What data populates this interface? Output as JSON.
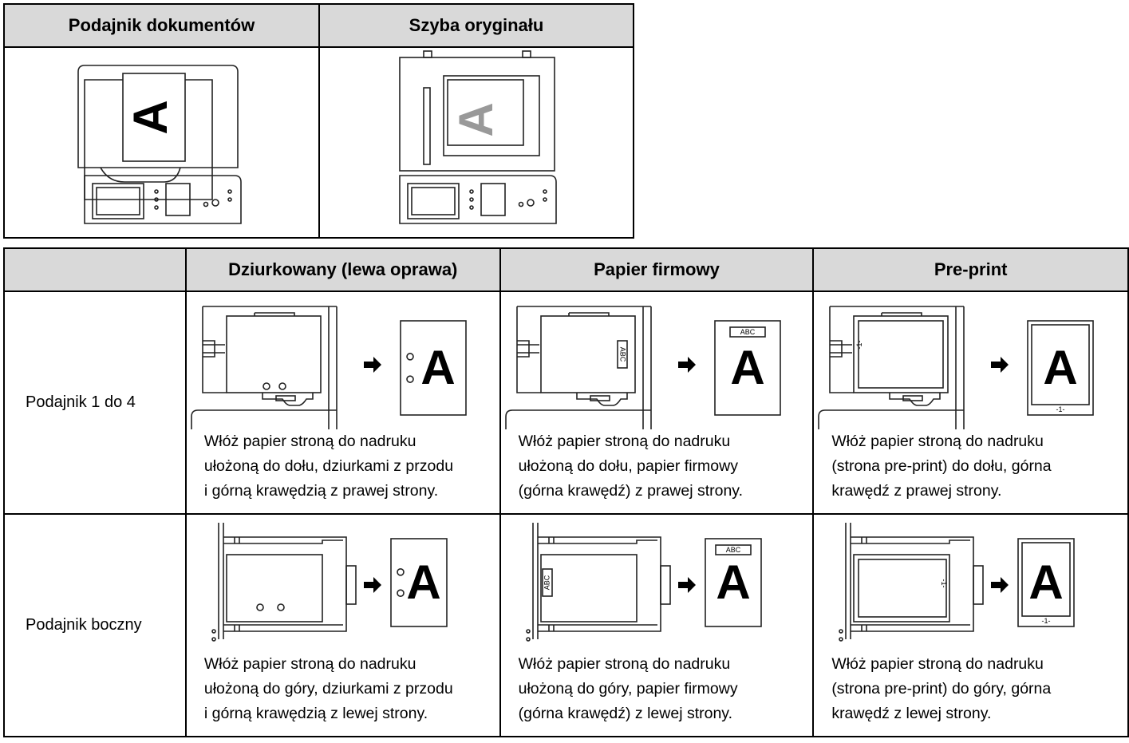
{
  "table1": {
    "headers": [
      "Podajnik dokumentów",
      "Szyba oryginału"
    ]
  },
  "table2": {
    "headers": [
      "Dziurkowany (lewa oprawa)",
      "Papier firmowy",
      "Pre-print"
    ],
    "rows": [
      {
        "label": "Podajnik 1 do 4",
        "cells": [
          [
            "Włóż papier stroną do nadruku",
            "ułożoną do dołu, dziurkami z przodu",
            "i górną krawędzią z prawej strony."
          ],
          [
            "Włóż papier stroną do nadruku",
            "ułożoną do dołu, papier firmowy",
            "(górna krawędź) z prawej strony."
          ],
          [
            "Włóż papier stroną do nadruku",
            "(strona pre-print) do dołu, górna",
            "krawędź z prawej strony."
          ]
        ]
      },
      {
        "label": "Podajnik boczny",
        "cells": [
          [
            "Włóż papier stroną do nadruku",
            "ułożoną do góry, dziurkami z przodu",
            "i górną krawędzią z lewej strony."
          ],
          [
            "Włóż papier stroną do nadruku",
            "ułożoną do góry, papier firmowy",
            "(górna krawędź) z lewej strony."
          ],
          [
            "Włóż papier stroną do nadruku",
            "(strona pre-print) do góry, górna",
            "krawędź z lewej strony."
          ]
        ]
      }
    ]
  },
  "illustration_text": {
    "letter": "A",
    "letterhead": "ABC",
    "page_number": "-1-"
  }
}
